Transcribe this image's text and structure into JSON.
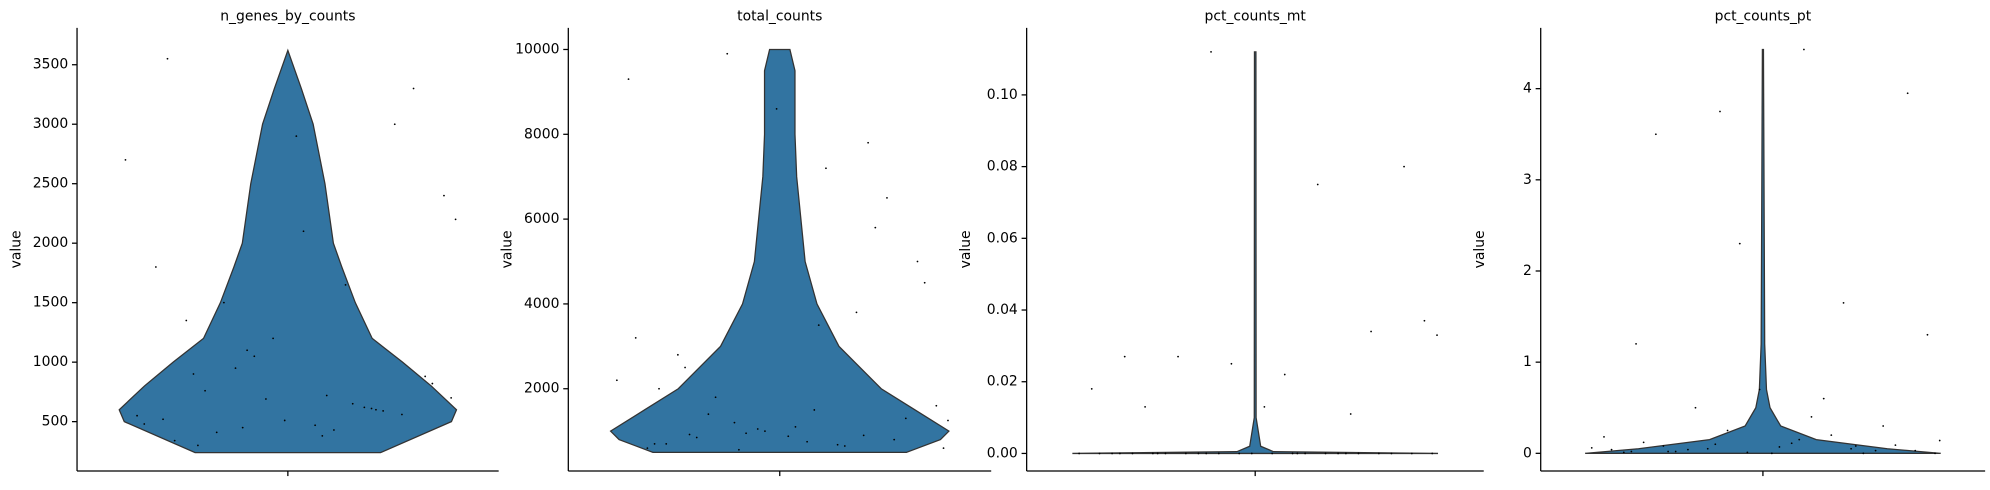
{
  "chart_data": [
    {
      "type": "violin",
      "title": "n_genes_by_counts",
      "ylabel": "value",
      "color": "#3274a1",
      "ylim": [
        85,
        3810
      ],
      "yticks": [
        500,
        1000,
        1500,
        2000,
        2500,
        3000,
        3500
      ],
      "violin": {
        "y": [
          240,
          500,
          600,
          800,
          1000,
          1200,
          1500,
          1800,
          2000,
          2500,
          3000,
          3300,
          3620
        ],
        "density": [
          0.55,
          0.97,
          1.0,
          0.85,
          0.68,
          0.5,
          0.4,
          0.32,
          0.27,
          0.22,
          0.15,
          0.08,
          0
        ]
      },
      "points": [
        520,
        610,
        450,
        700,
        380,
        900,
        560,
        1200,
        480,
        650,
        1500,
        820,
        2100,
        340,
        590,
        1050,
        2700,
        430,
        760,
        3300,
        510,
        1800,
        620,
        950,
        2400,
        470,
        1350,
        3000,
        690,
        550,
        1650,
        410,
        880,
        2900,
        3550,
        600,
        1100,
        2200,
        720,
        300
      ]
    },
    {
      "type": "violin",
      "title": "total_counts",
      "ylabel": "value",
      "color": "#3274a1",
      "ylim": [
        60,
        10510
      ],
      "yticks": [
        2000,
        4000,
        6000,
        8000,
        10000
      ],
      "violin": {
        "y": [
          500,
          800,
          1000,
          1500,
          2000,
          3000,
          4000,
          5000,
          7000,
          8000,
          9500,
          10000
        ],
        "density": [
          0.75,
          0.95,
          1.0,
          0.8,
          0.6,
          0.35,
          0.22,
          0.15,
          0.1,
          0.09,
          0.09,
          0.06
        ]
      },
      "points": [
        700,
        900,
        1200,
        600,
        1500,
        2500,
        800,
        1000,
        3200,
        650,
        1800,
        4500,
        1100,
        700,
        5800,
        950,
        2200,
        7200,
        850,
        1300,
        8600,
        600,
        3800,
        9900,
        1600,
        750,
        2800,
        6500,
        1050,
        9300,
        680,
        1400,
        5000,
        880,
        2000,
        7800,
        560,
        1250,
        3500,
        920
      ]
    },
    {
      "type": "violin",
      "title": "pct_counts_mt",
      "ylabel": "value",
      "color": "#3274a1",
      "ylim": [
        -0.0049,
        0.1187
      ],
      "yticks": [
        {
          "value": 0,
          "label": "0.00"
        },
        {
          "value": 0.02,
          "label": "0.02"
        },
        {
          "value": 0.04,
          "label": "0.04"
        },
        {
          "value": 0.06,
          "label": "0.06"
        },
        {
          "value": 0.08,
          "label": "0.08"
        },
        {
          "value": 0.1,
          "label": "0.10"
        }
      ],
      "violin": {
        "y": [
          0,
          0.0005,
          0.002,
          0.01,
          0.112
        ],
        "density": [
          1.0,
          0.1,
          0.03,
          0.005,
          0.004
        ]
      },
      "points": [
        0,
        0,
        0,
        0,
        0,
        0,
        0,
        0,
        0,
        0,
        0,
        0,
        0,
        0,
        0,
        0,
        0,
        0,
        0,
        0,
        0,
        0,
        0,
        0,
        0.037,
        0.022,
        0.013,
        0.034,
        0.025,
        0.018,
        0.075,
        0.027,
        0.08,
        0.013,
        0.027,
        0.011,
        0.112,
        0.033,
        0,
        0
      ]
    },
    {
      "type": "violin",
      "title": "pct_counts_pt",
      "ylabel": "value",
      "color": "#3274a1",
      "ylim": [
        -0.194,
        4.667
      ],
      "yticks": [
        0,
        1,
        2,
        3,
        4
      ],
      "violin": {
        "y": [
          0,
          0.05,
          0.15,
          0.3,
          0.5,
          0.7,
          1.2,
          4.43
        ],
        "density": [
          1.0,
          0.7,
          0.3,
          0.1,
          0.04,
          0.02,
          0.01,
          0.003
        ]
      },
      "points": [
        0.02,
        0.05,
        0.1,
        0,
        0.15,
        0.08,
        0.3,
        0.01,
        0.04,
        0.2,
        0.5,
        0.03,
        0.07,
        0.12,
        0,
        0.25,
        0.06,
        0.4,
        0.02,
        0.09,
        0.7,
        0.01,
        1.65,
        0.05,
        1.3,
        0.11,
        3.5,
        0.03,
        2.3,
        0.18,
        0.6,
        0.04,
        3.95,
        0,
        1.2,
        0.08,
        3.75,
        0.14,
        4.43,
        0.02
      ]
    }
  ]
}
